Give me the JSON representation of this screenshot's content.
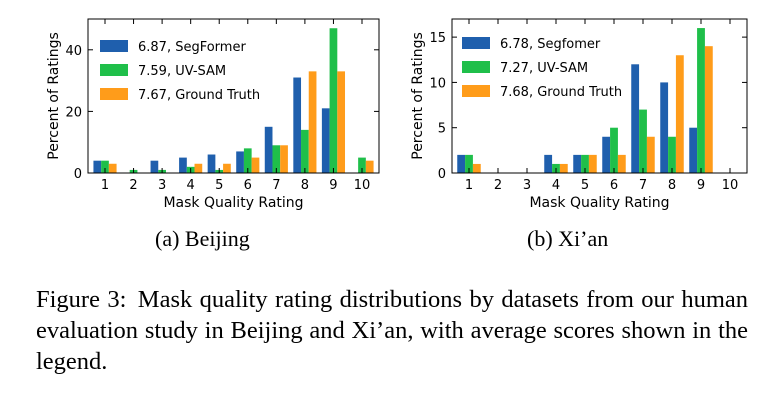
{
  "colors": {
    "segformer": "#1f5fad",
    "uvsam": "#1fbf4a",
    "gt": "#ff9c1a"
  },
  "chart_data": [
    {
      "type": "bar",
      "subcaption": "(a) Beijing",
      "xlabel": "Mask Quality Rating",
      "ylabel": "Percent of Ratings",
      "categories": [
        "1",
        "2",
        "3",
        "4",
        "5",
        "6",
        "7",
        "8",
        "9",
        "10"
      ],
      "ylim": [
        0,
        50
      ],
      "yticks": [
        0,
        20,
        40
      ],
      "legend_position": "top-left",
      "series": [
        {
          "name": "6.87, SegFormer",
          "values": [
            4,
            0,
            4,
            5,
            6,
            7,
            15,
            31,
            21,
            0
          ]
        },
        {
          "name": "7.59, UV-SAM",
          "values": [
            4,
            1,
            1,
            2,
            1,
            8,
            9,
            14,
            47,
            5
          ]
        },
        {
          "name": "7.67, Ground Truth",
          "values": [
            3,
            0,
            0,
            3,
            3,
            5,
            9,
            33,
            33,
            4
          ]
        }
      ]
    },
    {
      "type": "bar",
      "subcaption": "(b) Xi’an",
      "xlabel": "Mask Quality Rating",
      "ylabel": "Percent of Ratings",
      "categories": [
        "1",
        "2",
        "3",
        "4",
        "5",
        "6",
        "7",
        "8",
        "9",
        "10"
      ],
      "ylim": [
        0,
        17
      ],
      "yticks": [
        0,
        5,
        10,
        15
      ],
      "legend_position": "top-left",
      "series": [
        {
          "name": "6.78, Segfomer",
          "values": [
            2,
            0,
            0,
            2,
            2,
            4,
            12,
            10,
            5,
            0
          ]
        },
        {
          "name": "7.27, UV-SAM",
          "values": [
            2,
            0,
            0,
            1,
            2,
            5,
            7,
            4,
            16,
            0
          ]
        },
        {
          "name": "7.68, Ground Truth",
          "values": [
            1,
            0,
            0,
            1,
            2,
            2,
            4,
            13,
            14,
            0
          ]
        }
      ]
    }
  ],
  "caption": {
    "label": "Figure 3:",
    "text": "Mask quality rating distributions by datasets from our human evaluation study in Beijing and Xi’an, with average scores shown in the legend."
  }
}
